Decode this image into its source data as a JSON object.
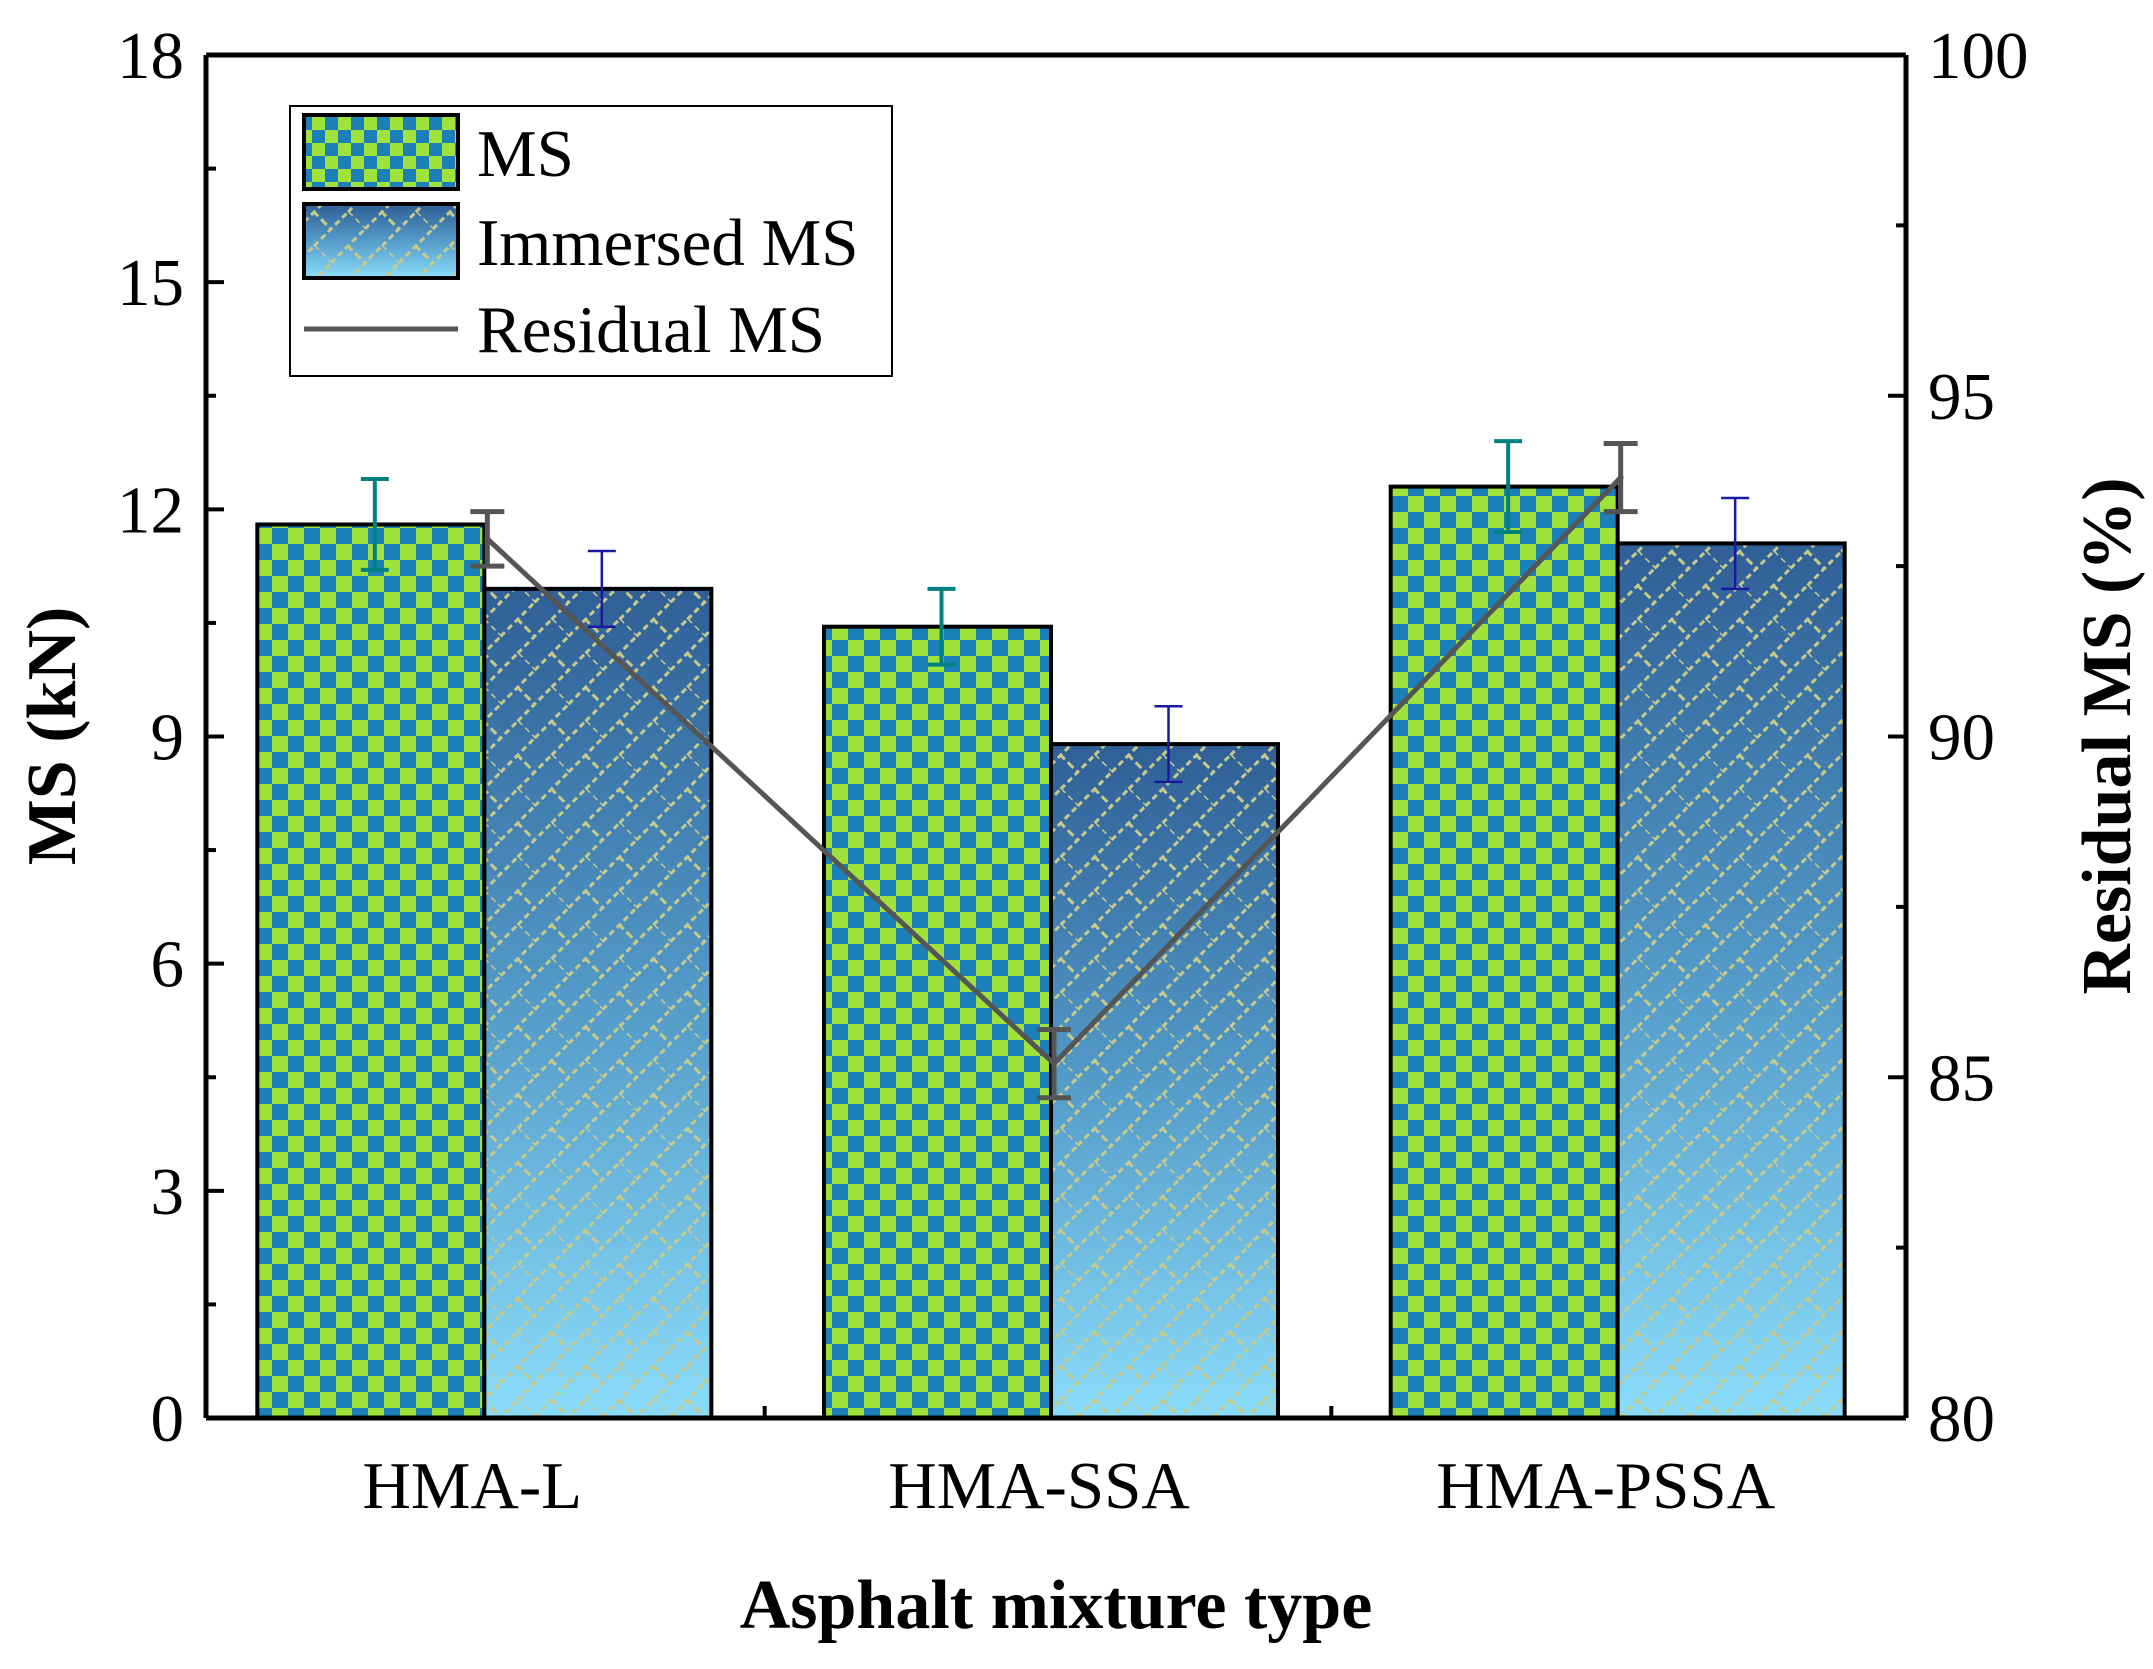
{
  "chart_data": {
    "type": "bar",
    "title": "",
    "xlabel": "Asphalt mixture type",
    "ylabel": "MS (kN)",
    "y2label": "Residual MS (%)",
    "categories": [
      "HMA-L",
      "HMA-SSA",
      "HMA-PSSA"
    ],
    "ylim": [
      0,
      18
    ],
    "y2lim": [
      80,
      100
    ],
    "yticks": [
      "0",
      "3",
      "6",
      "9",
      "12",
      "15",
      "18"
    ],
    "y2ticks": [
      "80",
      "85",
      "90",
      "95",
      "100"
    ],
    "series": [
      {
        "name": "MS",
        "kind": "bar",
        "axis": "left",
        "values": [
          11.8,
          10.45,
          12.3
        ],
        "errors": [
          0.6,
          0.5,
          0.6
        ],
        "error_color": "#008080"
      },
      {
        "name": "Immersed MS",
        "kind": "bar",
        "axis": "left",
        "values": [
          10.95,
          8.9,
          11.55
        ],
        "errors": [
          0.5,
          0.5,
          0.6
        ],
        "error_color": "#1a1aa0"
      },
      {
        "name": "Residual MS",
        "kind": "line",
        "axis": "right",
        "values": [
          92.9,
          85.2,
          93.8
        ],
        "errors": [
          0.4,
          0.5,
          0.5
        ],
        "line_color": "#555555"
      }
    ],
    "legend_position": "top-left"
  },
  "colors": {
    "checker_light": "#9fe23c",
    "checker_dark": "#1d7fb8",
    "immersed_top": "#2f5f96",
    "immersed_mid": "#4f95c4",
    "immersed_bottom": "#8adcfa",
    "hatch": "#c6c98a",
    "line": "#555555",
    "axis": "#000000"
  }
}
